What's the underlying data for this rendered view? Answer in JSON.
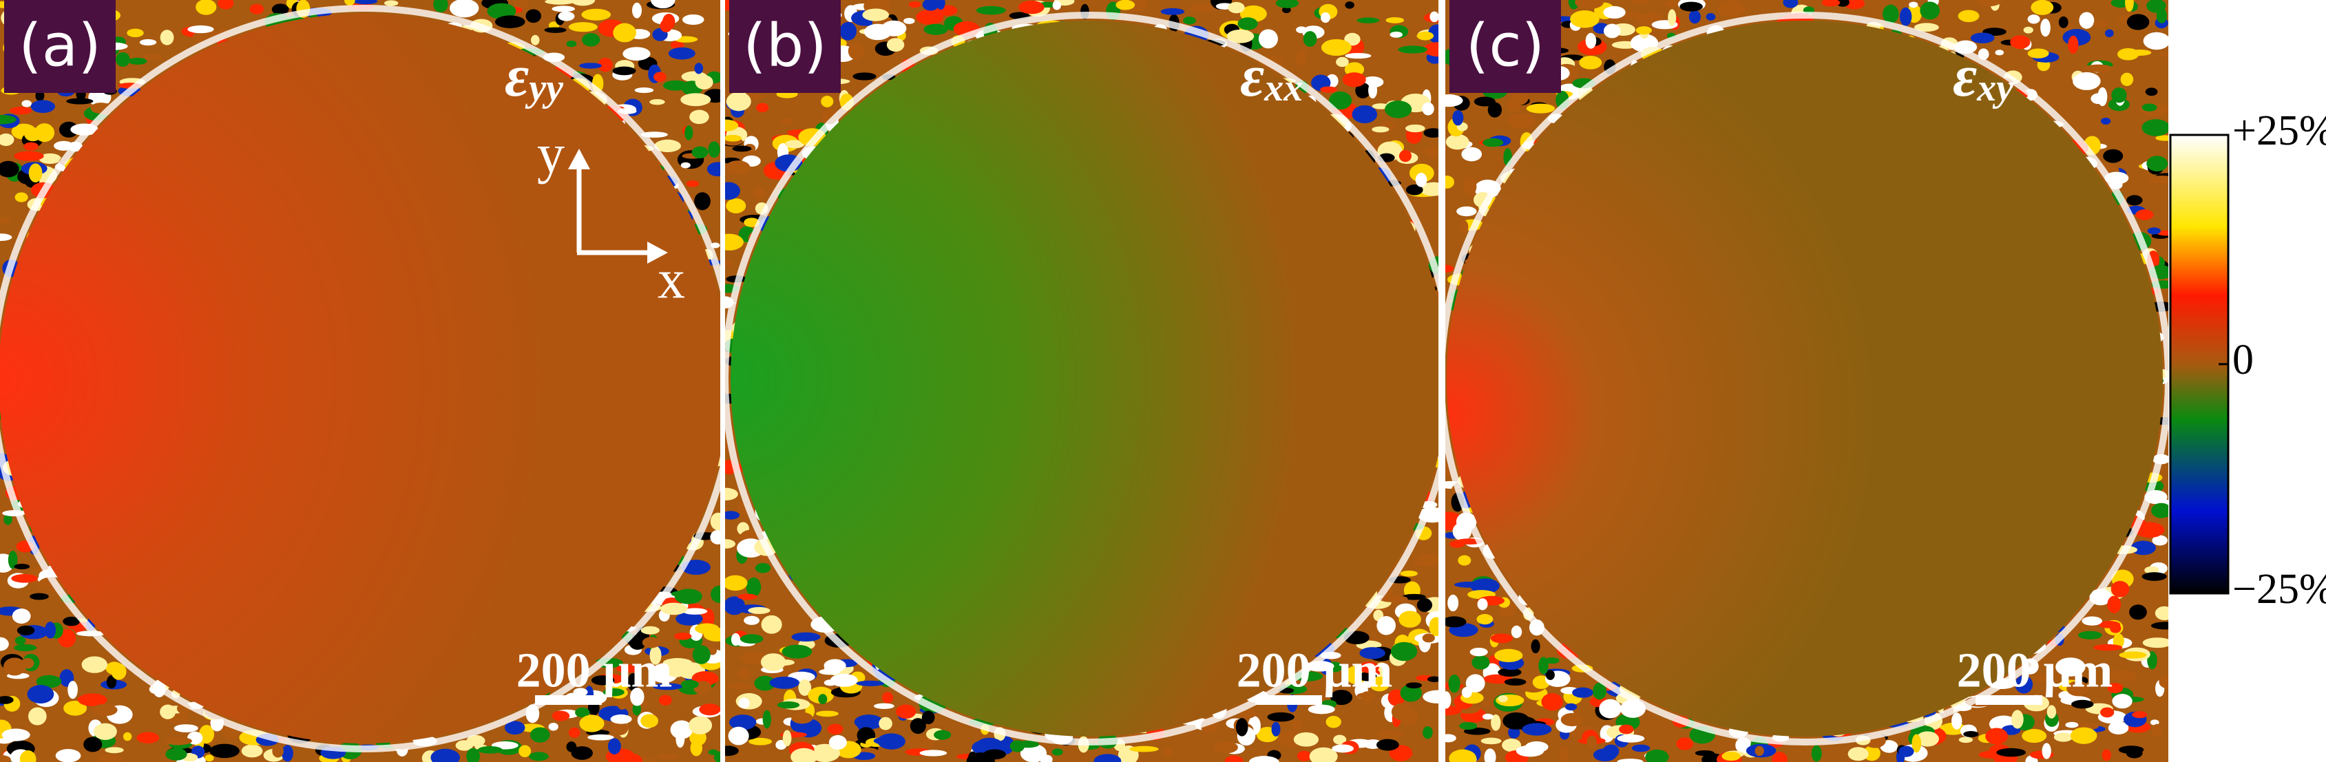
{
  "panels": [
    {
      "label": "(a)",
      "strain": {
        "symbol": "ε",
        "subscript": "yy"
      },
      "scale_bar": "200 μm",
      "axes": {
        "y": "y",
        "x": "x"
      }
    },
    {
      "label": "(b)",
      "strain": {
        "symbol": "ε",
        "subscript": "xx"
      },
      "scale_bar": "200 μm"
    },
    {
      "label": "(c)",
      "strain": {
        "symbol": "ε",
        "subscript": "xy"
      },
      "scale_bar": "200 μm"
    }
  ],
  "colorbar": {
    "lim": [
      -25,
      25
    ],
    "ticks": [
      {
        "value": 25,
        "label": "+25%"
      },
      {
        "value": 0,
        "label": "0"
      },
      {
        "value": -25,
        "label": "−25%"
      }
    ]
  }
}
